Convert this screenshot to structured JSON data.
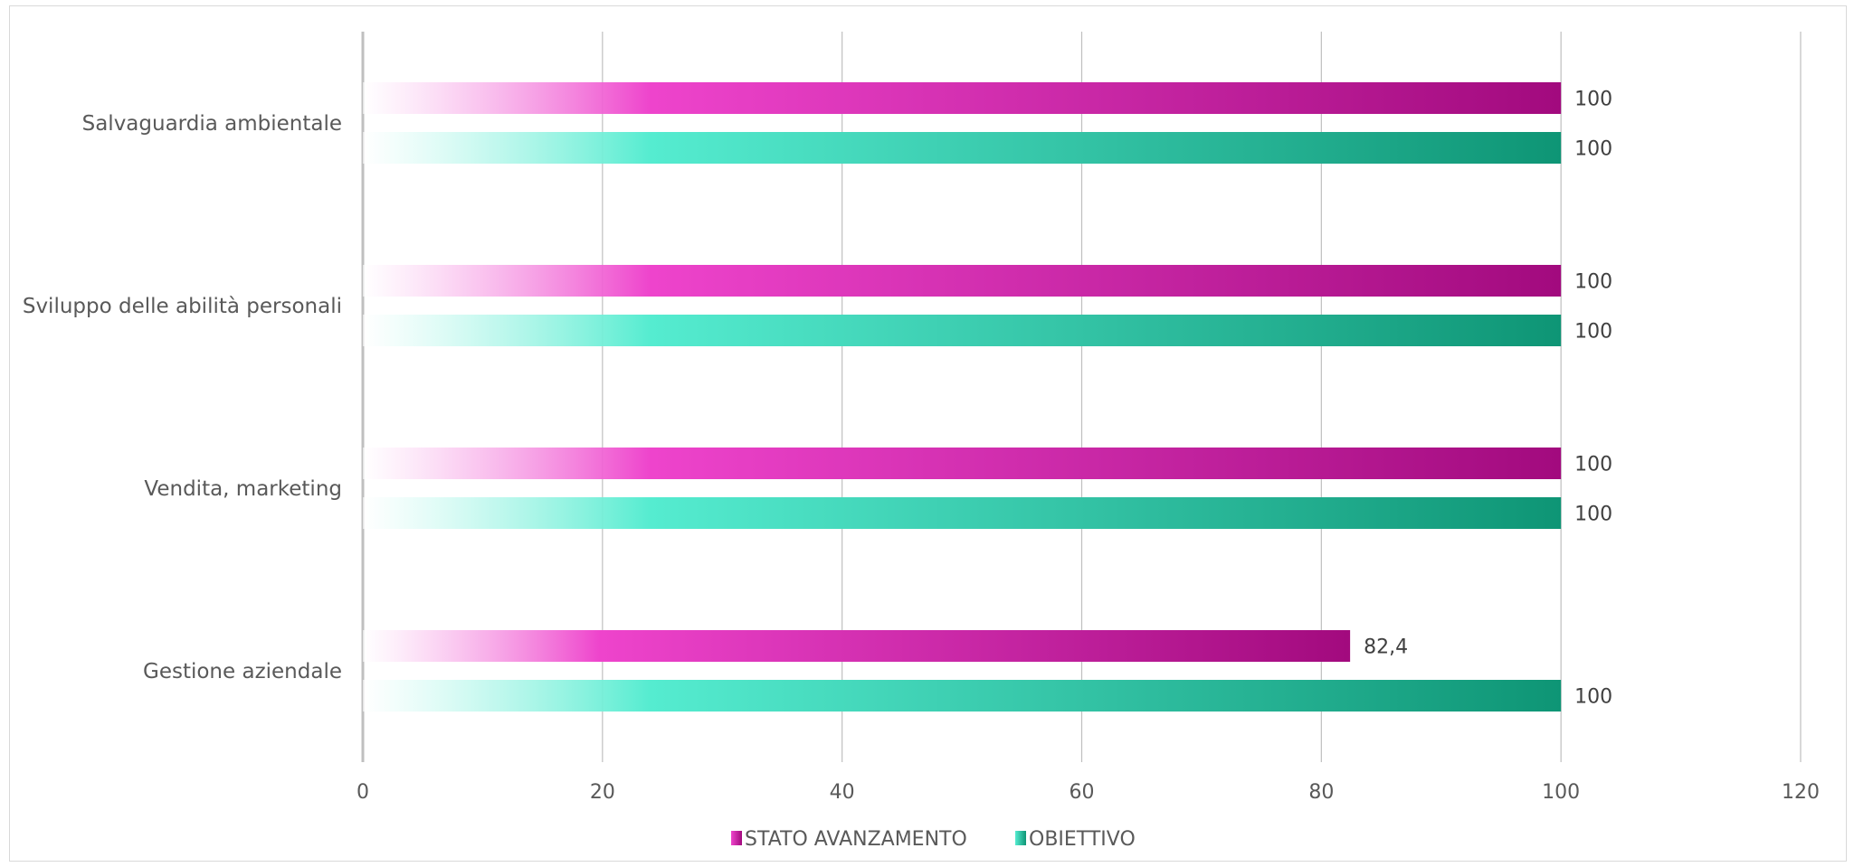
{
  "chart_data": {
    "type": "bar",
    "orientation": "horizontal",
    "title": "",
    "xlabel": "",
    "ylabel": "",
    "categories": [
      "Salvaguardia ambientale",
      "Sviluppo delle abilità personali",
      "Vendita, marketing",
      "Gestione aziendale"
    ],
    "series": [
      {
        "name": "STATO AVANZAMENTO",
        "values": [
          100,
          100,
          100,
          82.4
        ],
        "labels": [
          "100",
          "100",
          "100",
          "82,4"
        ],
        "color_start": "#ffffff",
        "color_mid": "#ee44cc",
        "color_end": "#a20a7e"
      },
      {
        "name": "OBIETTIVO",
        "values": [
          100,
          100,
          100,
          100
        ],
        "labels": [
          "100",
          "100",
          "100",
          "100"
        ],
        "color_start": "#ffffff",
        "color_mid": "#55ecd0",
        "color_end": "#0e9575"
      }
    ],
    "xlim": [
      0,
      120
    ],
    "xticks": [
      "0",
      "20",
      "40",
      "60",
      "80",
      "100",
      "120"
    ],
    "grid": "vertical",
    "legend_position": "bottom",
    "gridline_color": "#bfbfbf",
    "axis_color": "#bfbfbf"
  }
}
